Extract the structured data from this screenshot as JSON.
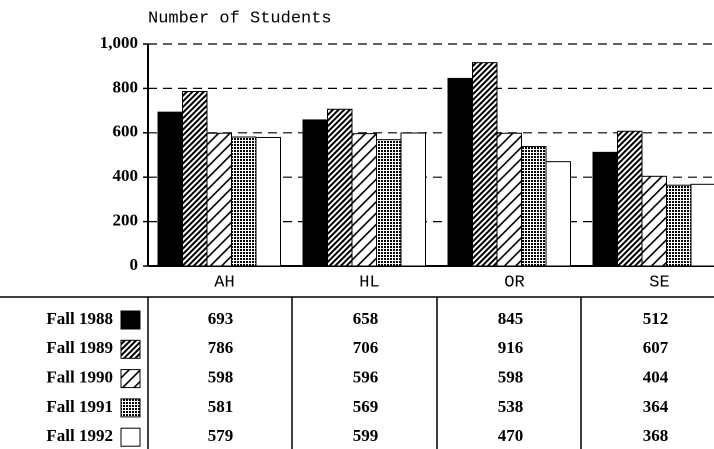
{
  "chart_data": {
    "type": "bar",
    "title": "Number of Students",
    "categories": [
      "AH",
      "HL",
      "OR",
      "SE"
    ],
    "series": [
      {
        "name": "Fall 1988",
        "color": "#000000",
        "values": [
          693,
          658,
          845,
          512
        ]
      },
      {
        "name": "Fall 1989",
        "color": "#000000",
        "values": [
          786,
          706,
          916,
          607
        ]
      },
      {
        "name": "Fall 1990",
        "color": "#000000",
        "values": [
          598,
          596,
          598,
          404
        ]
      },
      {
        "name": "Fall 1991",
        "color": "#000000",
        "values": [
          581,
          569,
          538,
          364
        ]
      },
      {
        "name": "Fall 1992",
        "color": "#ffffff",
        "values": [
          579,
          599,
          470,
          368
        ]
      }
    ],
    "ylim": [
      0,
      1000
    ],
    "yticks": [
      0,
      200,
      400,
      600,
      800,
      {
        "value": 1000,
        "label": "1,000"
      }
    ],
    "grid": true
  }
}
